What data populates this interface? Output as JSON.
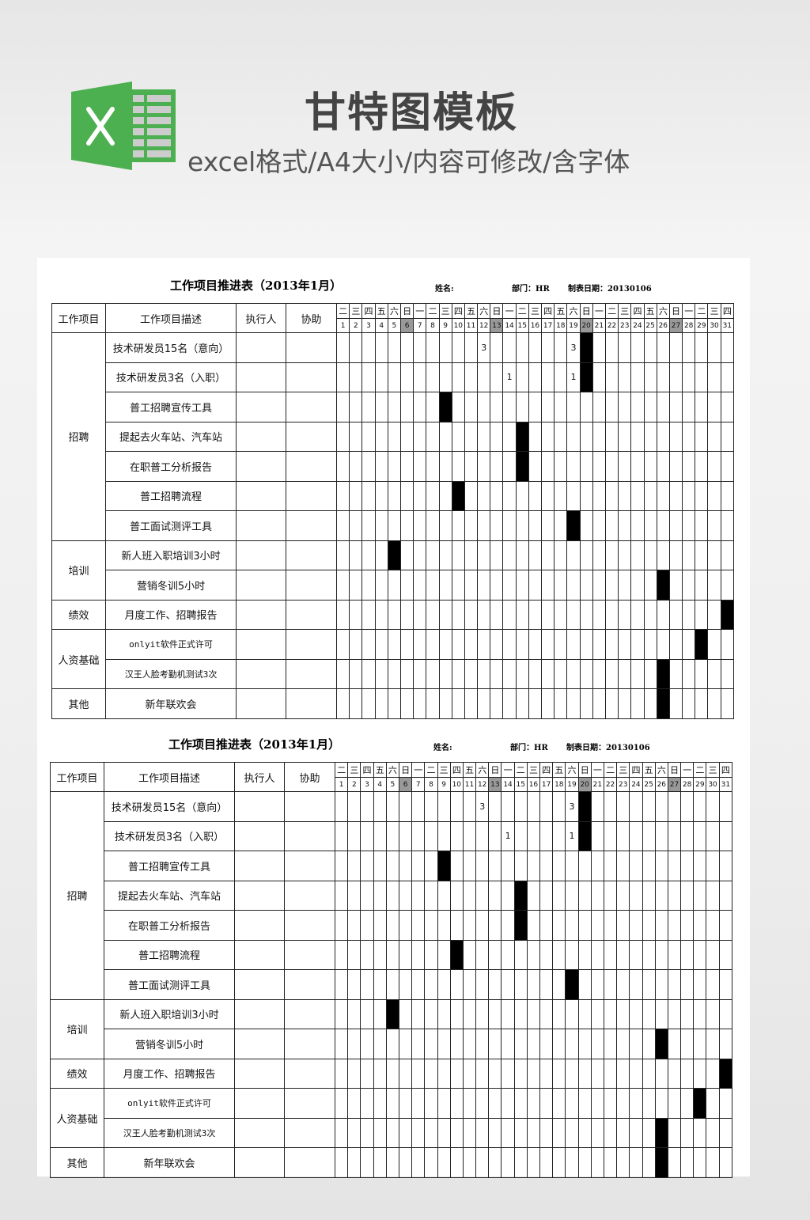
{
  "banner": {
    "title": "甘特图模板",
    "subtitle": "excel格式/A4大小/内容可修改/含字体",
    "logo_letter": "X",
    "logo_color": "#4caf50"
  },
  "sheet": {
    "title": "工作项目推进表（2013年1月）",
    "name_label": "姓名:",
    "dept": "部门：HR",
    "date": "制表日期：20130106",
    "headers": [
      "工作项目",
      "工作项目描述",
      "执行人",
      "协助"
    ],
    "weekdays": [
      "二",
      "三",
      "四",
      "五",
      "六",
      "日",
      "一",
      "二",
      "三",
      "四",
      "五",
      "六",
      "日",
      "一",
      "二",
      "三",
      "四",
      "五",
      "六",
      "日",
      "一",
      "二",
      "三",
      "四",
      "五",
      "六",
      "日",
      "一",
      "二",
      "三",
      "四"
    ],
    "days": [
      "1",
      "2",
      "3",
      "4",
      "5",
      "6",
      "7",
      "8",
      "9",
      "10",
      "11",
      "12",
      "13",
      "14",
      "15",
      "16",
      "17",
      "18",
      "19",
      "20",
      "21",
      "22",
      "23",
      "24",
      "25",
      "26",
      "27",
      "28",
      "29",
      "30",
      "31"
    ],
    "shaded_days": [
      6,
      13,
      20,
      27
    ],
    "shade_color": "#999999",
    "bar_color": "#000000",
    "groups": [
      {
        "name": "招聘",
        "rows": [
          {
            "desc": "技术研发员15名（意向）",
            "marks": {
              "12": "3",
              "19": "3"
            },
            "bars": [
              20
            ]
          },
          {
            "desc": "技术研发员3名（入职）",
            "marks": {
              "14": "1",
              "19": "1"
            },
            "bars": [
              20
            ]
          },
          {
            "desc": "普工招聘宣传工具",
            "marks": {},
            "bars": [
              9
            ]
          },
          {
            "desc": "提起去火车站、汽车站",
            "marks": {},
            "bars": [
              15
            ]
          },
          {
            "desc": "在职普工分析报告",
            "marks": {},
            "bars": [
              15
            ]
          },
          {
            "desc": "普工招聘流程",
            "marks": {},
            "bars": [
              10
            ]
          },
          {
            "desc": "普工面试测评工具",
            "marks": {},
            "bars": [
              19
            ]
          }
        ]
      },
      {
        "name": "培训",
        "rows": [
          {
            "desc": "新人班入职培训3小时",
            "marks": {},
            "bars": [
              5
            ]
          },
          {
            "desc": "营销冬训5小时",
            "marks": {},
            "bars": [
              26
            ]
          }
        ]
      },
      {
        "name": "绩效",
        "rows": [
          {
            "desc": "月度工作、招聘报告",
            "marks": {},
            "bars": [
              31
            ]
          }
        ]
      },
      {
        "name": "人资基础",
        "rows": [
          {
            "desc": "onlyit软件正式许可",
            "marks": {},
            "bars": [
              29
            ]
          },
          {
            "desc": "汉王人脸考勤机测试3次",
            "marks": {},
            "bars": [
              26
            ]
          }
        ]
      },
      {
        "name": "其他",
        "rows": [
          {
            "desc": "新年联欢会",
            "marks": {},
            "bars": [
              26
            ]
          }
        ]
      }
    ]
  }
}
